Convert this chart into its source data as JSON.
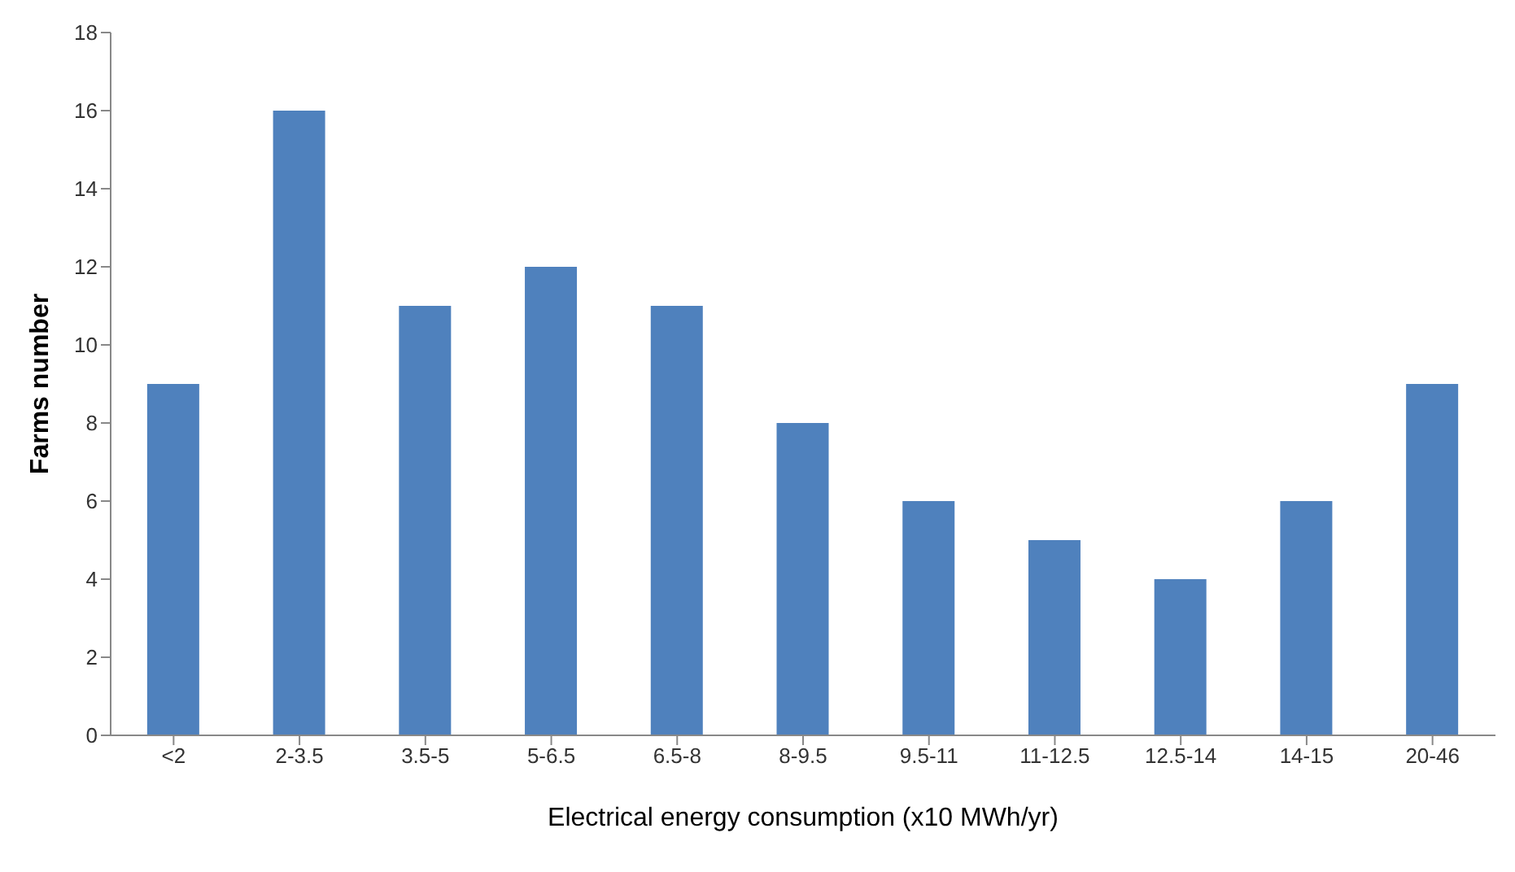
{
  "chart_data": {
    "type": "bar",
    "xlabel": "Electrical energy consumption (x10 MWh/yr)",
    "ylabel": "Farms number",
    "categories": [
      "<2",
      "2-3.5",
      "3.5-5",
      "5-6.5",
      "6.5-8",
      "8-9.5",
      "9.5-11",
      "11-12.5",
      "12.5-14",
      "14-15",
      "20-46"
    ],
    "values": [
      9,
      16,
      11,
      12,
      11,
      8,
      6,
      5,
      4,
      6,
      9
    ],
    "color": "#4f81bd",
    "ylim": [
      0,
      18
    ],
    "yticks": [
      0,
      2,
      4,
      6,
      8,
      10,
      12,
      14,
      16,
      18
    ],
    "grid": false
  }
}
